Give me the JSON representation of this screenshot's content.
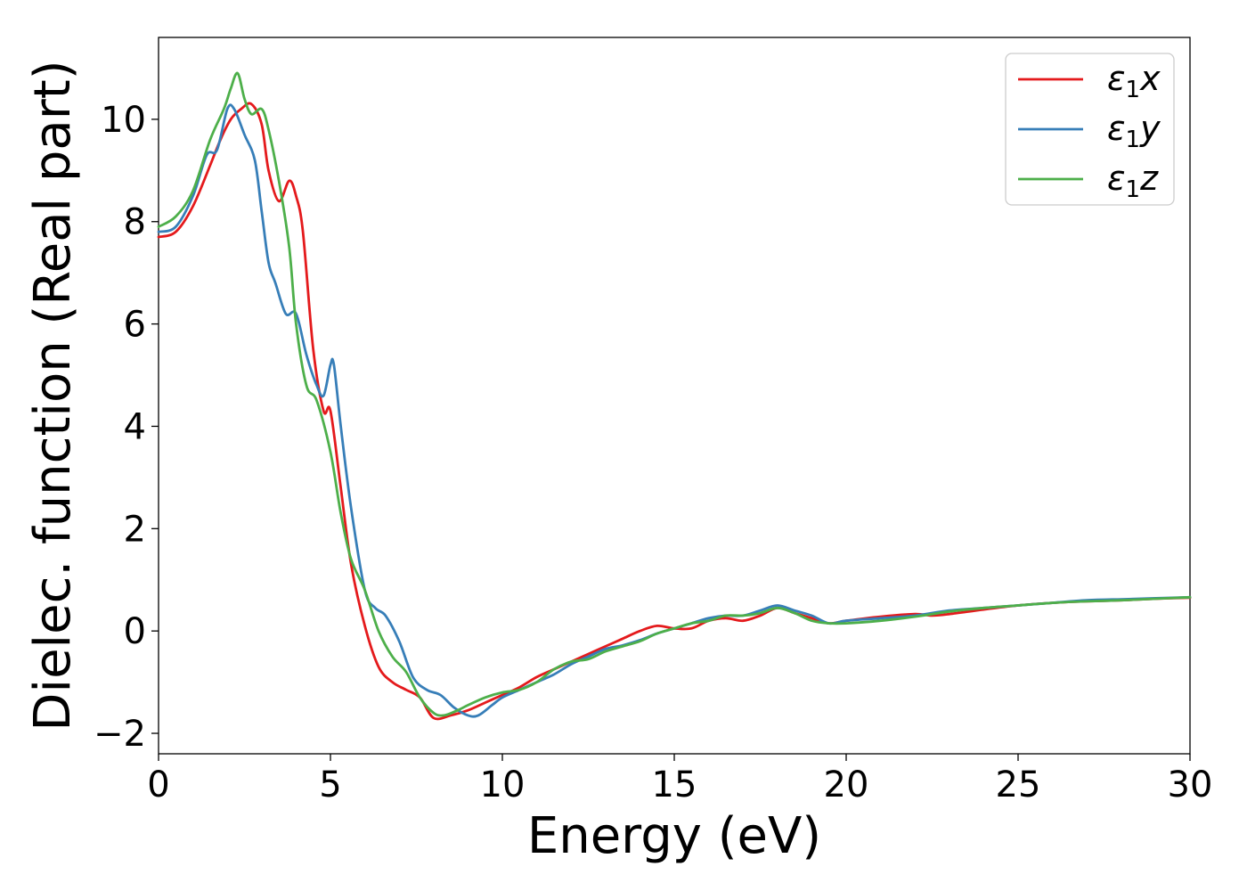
{
  "chart_data": {
    "type": "line",
    "xlabel": "Energy (eV)",
    "ylabel": "Dielec. function (Real part)",
    "xlim": [
      0,
      30
    ],
    "ylim": [
      -2.4,
      11.6
    ],
    "xticks": [
      0,
      5,
      10,
      15,
      20,
      25,
      30
    ],
    "xtick_labels": [
      "0",
      "5",
      "10",
      "15",
      "20",
      "25",
      "30"
    ],
    "yticks": [
      -2,
      0,
      2,
      4,
      6,
      8,
      10
    ],
    "ytick_labels": [
      "−2",
      "0",
      "2",
      "4",
      "6",
      "8",
      "10"
    ],
    "grid": false,
    "legend_position": "top-right",
    "series": [
      {
        "name": "ε1x",
        "legend_main": "ε",
        "legend_sub": "1",
        "legend_tail": "x",
        "color": "#e41a1c",
        "x": [
          0,
          0.5,
          1,
          1.5,
          1.8,
          2.1,
          2.4,
          2.7,
          3.0,
          3.2,
          3.5,
          3.8,
          4.0,
          4.2,
          4.5,
          4.8,
          5.0,
          5.3,
          5.6,
          6.0,
          6.4,
          6.8,
          7.2,
          7.6,
          8.0,
          8.5,
          9.0,
          9.5,
          10.0,
          10.5,
          11.0,
          11.5,
          12.0,
          12.5,
          13.0,
          13.5,
          14.0,
          14.5,
          15.0,
          15.5,
          16.0,
          16.5,
          17.0,
          17.5,
          18.0,
          18.5,
          19.0,
          19.5,
          20.0,
          21.0,
          22.0,
          22.5,
          23.0,
          24.0,
          25.0,
          26.0,
          27.0,
          28.0,
          29.0,
          30.0
        ],
        "y": [
          7.7,
          7.8,
          8.3,
          9.1,
          9.6,
          10.0,
          10.2,
          10.3,
          9.9,
          9.0,
          8.4,
          8.8,
          8.5,
          7.8,
          5.5,
          4.3,
          4.3,
          2.8,
          1.3,
          0.1,
          -0.7,
          -1.0,
          -1.15,
          -1.3,
          -1.7,
          -1.65,
          -1.55,
          -1.4,
          -1.25,
          -1.1,
          -0.9,
          -0.75,
          -0.6,
          -0.45,
          -0.3,
          -0.15,
          0.0,
          0.1,
          0.05,
          0.05,
          0.2,
          0.25,
          0.2,
          0.3,
          0.45,
          0.35,
          0.25,
          0.15,
          0.2,
          0.28,
          0.33,
          0.3,
          0.33,
          0.42,
          0.5,
          0.55,
          0.58,
          0.6,
          0.63,
          0.65
        ]
      },
      {
        "name": "ε1y",
        "legend_main": "ε",
        "legend_sub": "1",
        "legend_tail": "y",
        "color": "#377eb8",
        "x": [
          0,
          0.5,
          1,
          1.4,
          1.7,
          2.0,
          2.2,
          2.5,
          2.8,
          3.0,
          3.2,
          3.4,
          3.7,
          4.0,
          4.3,
          4.6,
          4.8,
          5.0,
          5.1,
          5.3,
          5.6,
          6.0,
          6.3,
          6.6,
          7.0,
          7.4,
          7.8,
          8.2,
          8.6,
          9.0,
          9.3,
          9.7,
          10.0,
          10.5,
          11.0,
          11.5,
          12.0,
          12.5,
          13.0,
          13.5,
          14.0,
          14.5,
          15.0,
          15.5,
          16.0,
          16.5,
          17.0,
          17.5,
          18.0,
          18.5,
          19.0,
          19.5,
          20.0,
          21.0,
          22.0,
          23.0,
          24.0,
          25.0,
          26.0,
          27.0,
          28.0,
          29.0,
          30.0
        ],
        "y": [
          7.8,
          7.9,
          8.5,
          9.3,
          9.4,
          10.2,
          10.2,
          9.7,
          9.2,
          8.2,
          7.2,
          6.8,
          6.2,
          6.2,
          5.4,
          4.8,
          4.6,
          5.2,
          5.2,
          4.0,
          2.4,
          0.8,
          0.45,
          0.3,
          -0.2,
          -0.9,
          -1.15,
          -1.25,
          -1.5,
          -1.65,
          -1.65,
          -1.45,
          -1.3,
          -1.15,
          -1.0,
          -0.85,
          -0.65,
          -0.5,
          -0.35,
          -0.28,
          -0.18,
          -0.05,
          0.05,
          0.15,
          0.25,
          0.3,
          0.3,
          0.4,
          0.5,
          0.4,
          0.3,
          0.15,
          0.2,
          0.25,
          0.3,
          0.4,
          0.45,
          0.5,
          0.55,
          0.6,
          0.62,
          0.64,
          0.66
        ]
      },
      {
        "name": "ε1z",
        "legend_main": "ε",
        "legend_sub": "1",
        "legend_tail": "z",
        "color": "#4daf4a",
        "x": [
          0,
          0.5,
          1,
          1.5,
          1.9,
          2.1,
          2.3,
          2.5,
          2.7,
          3.0,
          3.2,
          3.5,
          3.8,
          4.0,
          4.3,
          4.6,
          5.0,
          5.3,
          5.6,
          6.0,
          6.4,
          6.8,
          7.2,
          7.6,
          8.0,
          8.3,
          8.7,
          9.0,
          9.5,
          10.0,
          10.5,
          11.0,
          11.5,
          12.0,
          12.5,
          13.0,
          13.5,
          14.0,
          14.5,
          15.0,
          15.5,
          16.0,
          16.5,
          17.0,
          17.5,
          18.0,
          18.5,
          19.0,
          19.5,
          20.0,
          21.0,
          22.0,
          23.0,
          24.0,
          25.0,
          26.0,
          27.0,
          28.0,
          29.0,
          30.0
        ],
        "y": [
          7.9,
          8.1,
          8.6,
          9.6,
          10.2,
          10.6,
          10.9,
          10.4,
          10.1,
          10.2,
          9.8,
          8.8,
          7.5,
          6.0,
          4.8,
          4.5,
          3.5,
          2.3,
          1.4,
          0.8,
          0.0,
          -0.5,
          -0.8,
          -1.3,
          -1.6,
          -1.65,
          -1.55,
          -1.45,
          -1.3,
          -1.2,
          -1.15,
          -1.0,
          -0.75,
          -0.6,
          -0.55,
          -0.4,
          -0.3,
          -0.2,
          -0.05,
          0.05,
          0.15,
          0.2,
          0.3,
          0.3,
          0.35,
          0.45,
          0.35,
          0.2,
          0.15,
          0.15,
          0.2,
          0.28,
          0.38,
          0.45,
          0.5,
          0.55,
          0.58,
          0.6,
          0.63,
          0.66
        ]
      }
    ]
  }
}
